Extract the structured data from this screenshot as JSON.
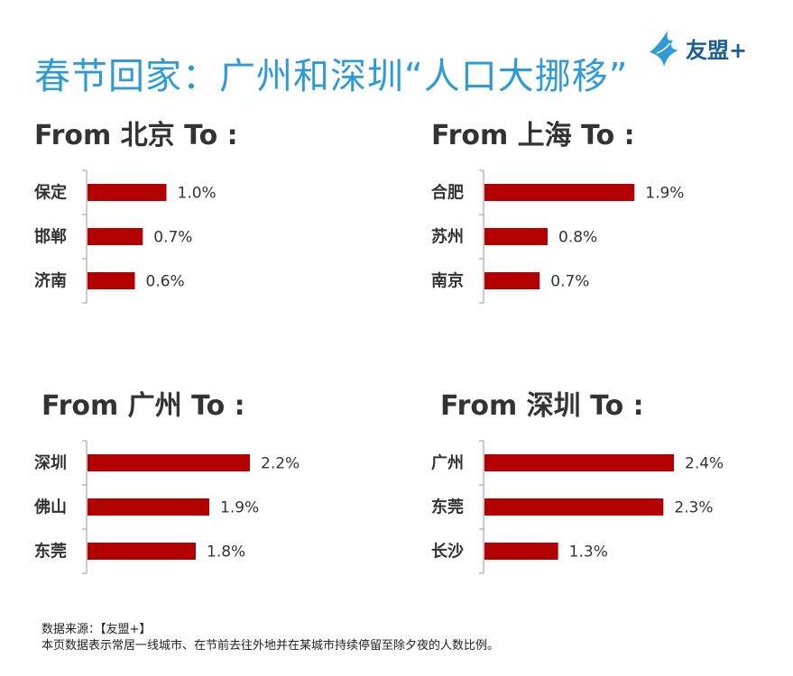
{
  "title": "春节回家：广州和深圳“人口大挪移”",
  "logo": {
    "text": "友盟+",
    "icon": "bird-icon",
    "color": "#1b5e8f"
  },
  "colors": {
    "bar": "#b30000",
    "title": "#2e9bd6",
    "axis": "#999999",
    "text": "#333333"
  },
  "chart_data": [
    {
      "type": "bar",
      "orientation": "horizontal",
      "title": "From 北京  To :",
      "categories": [
        "保定",
        "邯郸",
        "济南"
      ],
      "values": [
        1.0,
        0.7,
        0.6
      ],
      "labels": [
        "1.0%",
        "0.7%",
        "0.6%"
      ],
      "xlim": [
        0,
        2.4
      ]
    },
    {
      "type": "bar",
      "orientation": "horizontal",
      "title": "From 上海 To :",
      "categories": [
        "合肥",
        "苏州",
        "南京"
      ],
      "values": [
        1.9,
        0.8,
        0.7
      ],
      "labels": [
        "1.9%",
        "0.8%",
        "0.7%"
      ],
      "xlim": [
        0,
        2.4
      ]
    },
    {
      "type": "bar",
      "orientation": "horizontal",
      "title": "From 广州 To :",
      "categories": [
        "深圳",
        "佛山",
        "东莞"
      ],
      "values": [
        2.2,
        1.9,
        1.8
      ],
      "labels": [
        "2.2%",
        "1.9%",
        "1.8%"
      ],
      "xlim": [
        1.0,
        2.4
      ]
    },
    {
      "type": "bar",
      "orientation": "horizontal",
      "title": "From 深圳 To :",
      "categories": [
        "广州",
        "东莞",
        "长沙"
      ],
      "values": [
        2.4,
        2.3,
        1.3
      ],
      "labels": [
        "2.4%",
        "2.3%",
        "1.3%"
      ],
      "xlim": [
        0.6,
        2.4
      ]
    }
  ],
  "footer": {
    "source": "数据来源：【友盟+】",
    "note": "本页数据表示常居一线城市、在节前去往外地并在某城市持续停留至除夕夜的人数比例。"
  }
}
